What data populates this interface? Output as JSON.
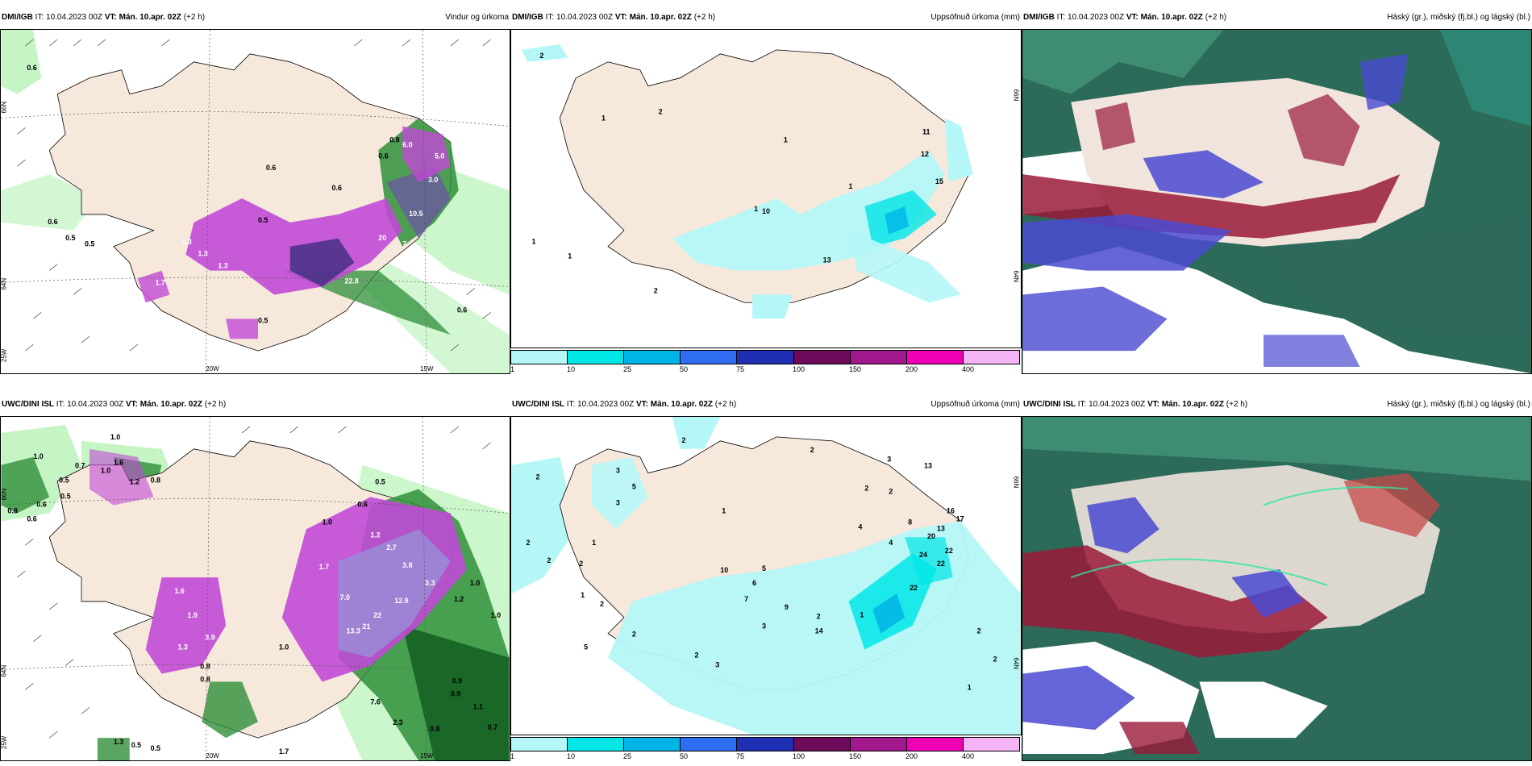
{
  "panels": [
    {
      "model": "DMI/IGB",
      "it": "10.04.2023 00Z",
      "vt": "Mán. 10.apr. 02Z",
      "lead": "(+2 h)",
      "product": "Vindur og úrkoma",
      "labels": [
        "0.6",
        "0.6",
        "0.5",
        "0.6",
        "1.3",
        "1.3",
        "1.3",
        "1.7",
        "0.6",
        "0.5",
        "0.5",
        "0.5",
        "6.0",
        "5.0",
        "3.0",
        "10.5",
        "20",
        "7",
        "22.8",
        "0.6",
        "0.8",
        "0.6"
      ],
      "axes": {
        "lat": [
          "66N",
          "64N",
          "25W"
        ],
        "lon": [
          "20W",
          "15W"
        ]
      }
    },
    {
      "model": "DMI/IGB",
      "it": "10.04.2023 00Z",
      "vt": "Mán. 10.apr. 02Z",
      "lead": "(+2 h)",
      "product": "Uppsöfnuð úrkoma (mm)",
      "labels": [
        "2",
        "1",
        "2",
        "1",
        "10",
        "13",
        "12",
        "15",
        "11",
        "1",
        "2",
        "1",
        "1",
        "1"
      ],
      "axes": {
        "lat": [
          "66N",
          "64N"
        ]
      }
    },
    {
      "model": "DMI/IGB",
      "it": "10.04.2023 00Z",
      "vt": "Mán. 10.apr. 02Z",
      "lead": "(+2 h)",
      "product": "Háský (gr.), miðský (fj.bl.) og lágský (bl.)"
    },
    {
      "model": "UWC/DINI ISL",
      "it": "10.04.2023 00Z",
      "vt": "Mán. 10.apr. 02Z",
      "lead": "(+2 h)",
      "product": "Vindur og úrkoma",
      "labels": [
        "1.0",
        "1.0",
        "0.7",
        "0.5",
        "0.5",
        "0.6",
        "0.6",
        "0.8",
        "1.0",
        "1.6",
        "0.8",
        "1.2",
        "0.5",
        "0.6",
        "1.0",
        "1.2",
        "2.7",
        "3.8",
        "1.7",
        "3.3",
        "7.0",
        "12.9",
        "13.3",
        "22",
        "21",
        "1.6",
        "1.9",
        "1.3",
        "3.9",
        "0.8",
        "7.6",
        "2.3",
        "0.8",
        "1.0",
        "0.9",
        "0.7",
        "1.0",
        "0.5",
        "1.3",
        "0.5",
        "1.7",
        "0.8",
        "1.2",
        "1.0",
        "0.9",
        "1.1"
      ],
      "axes": {
        "lat": [
          "66N",
          "64N",
          "25W"
        ],
        "lon": [
          "20W",
          "15W"
        ]
      }
    },
    {
      "model": "UWC/DINI ISL",
      "it": "10.04.2023 00Z",
      "vt": "Mán. 10.apr. 02Z",
      "lead": "(+2 h)",
      "product": "Uppsöfnuð úrkoma (mm)",
      "labels": [
        "2",
        "2",
        "2",
        "2",
        "3",
        "5",
        "3",
        "2",
        "1",
        "1",
        "2",
        "7",
        "9",
        "14",
        "10",
        "5",
        "6",
        "13",
        "16",
        "17",
        "20",
        "24",
        "22",
        "22",
        "22",
        "2",
        "1",
        "2",
        "2",
        "3",
        "8",
        "4",
        "4",
        "13",
        "3",
        "2",
        "1",
        "2",
        "2",
        "1",
        "5",
        "2",
        "2",
        "3"
      ],
      "axes": {
        "lat": [
          "66N",
          "64N"
        ]
      }
    },
    {
      "model": "UWC/DINI ISL",
      "it": "10.04.2023 00Z",
      "vt": "Mán. 10.apr. 02Z",
      "lead": "(+2 h)",
      "product": "Háský (gr.), miðský (fj.bl.) og lágský (bl.)"
    }
  ],
  "colorbar": {
    "colors": [
      "#b5f7f7",
      "#00e6e6",
      "#00b4e6",
      "#2f6df0",
      "#1e2fb4",
      "#6e0a5a",
      "#a0188c",
      "#f000b4",
      "#f5b4f5"
    ],
    "ticks": [
      "1",
      "10",
      "25",
      "50",
      "75",
      "100",
      "150",
      "200",
      "400"
    ]
  },
  "colors": {
    "land": "#f7e8dc",
    "sea": "#ffffff",
    "precip_light": "#b6f2b6",
    "precip_green": "#2f8f3a",
    "precip_dark": "#0f5a1e",
    "precip_magenta": "#c04ad6",
    "precip_violet": "#6a2fa0",
    "cloud_low": "#4a4ad2",
    "cloud_mid": "#2e8a76",
    "cloud_high": "#9a1a3a"
  }
}
